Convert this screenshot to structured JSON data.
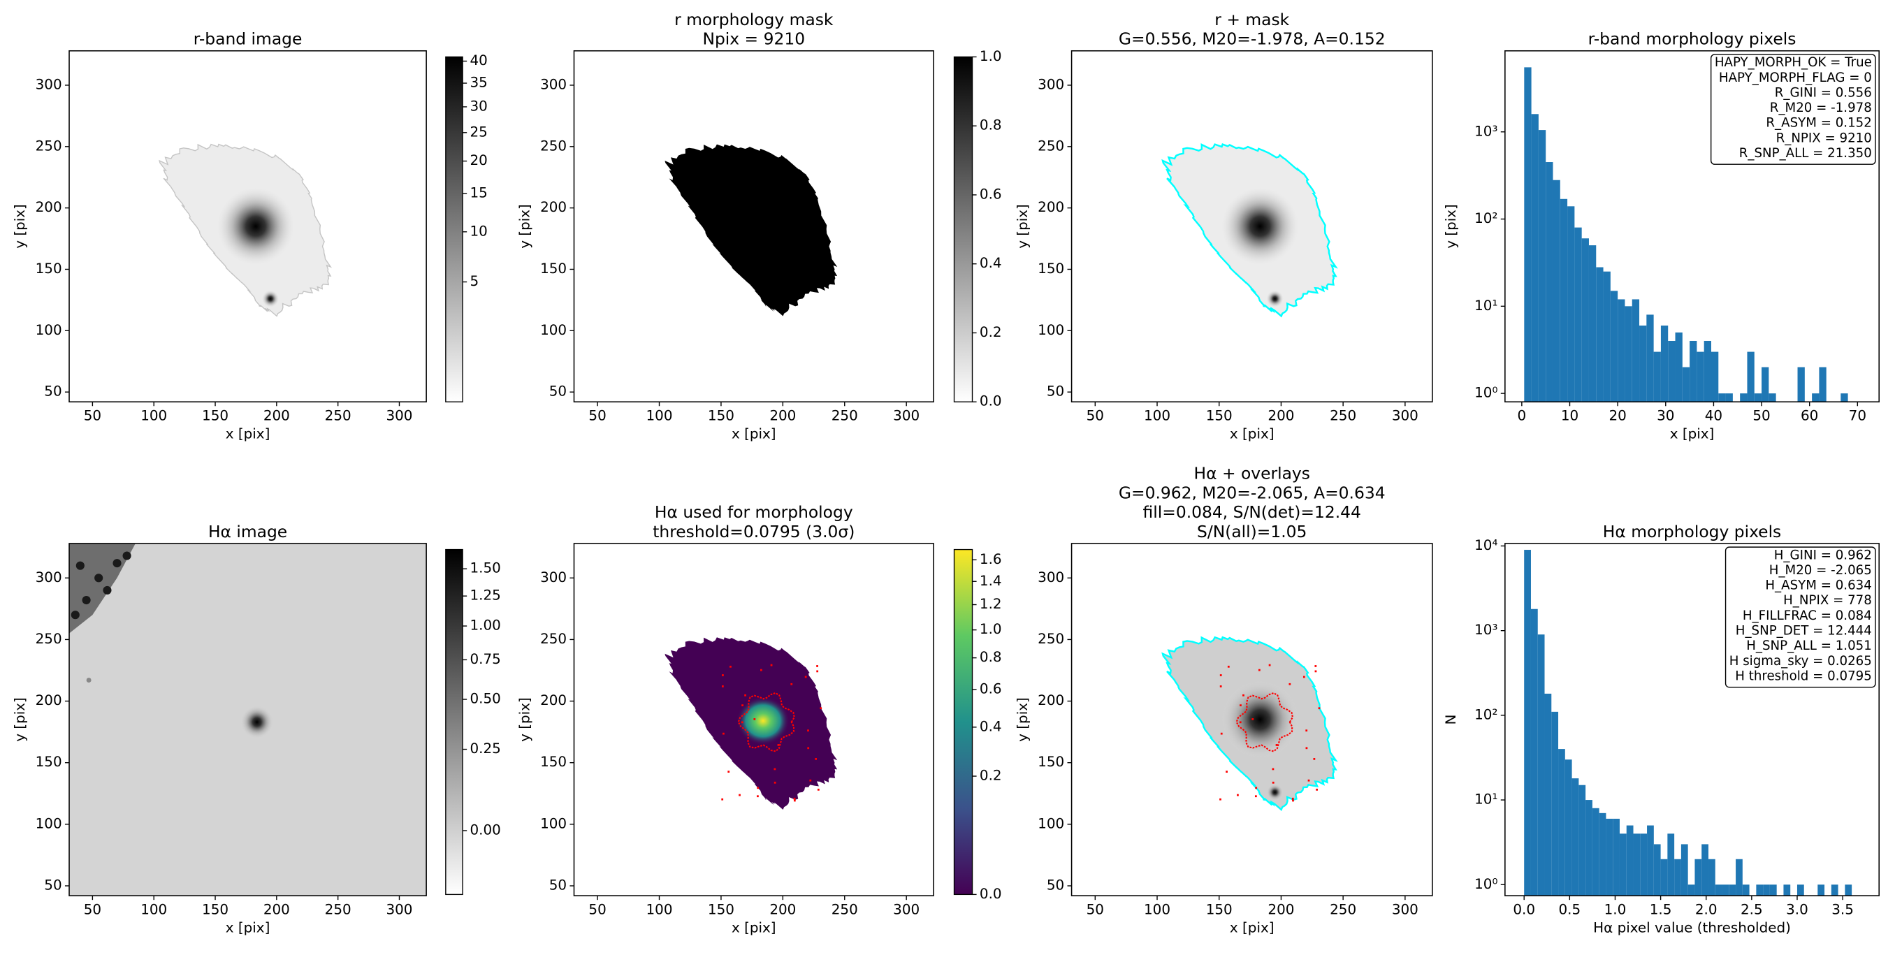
{
  "chart_data": [
    {
      "type": "image",
      "title": [
        "r-band image"
      ],
      "xlabel": "x [pix]",
      "ylabel": "y [pix]",
      "xlim": [
        31,
        322
      ],
      "ylim": [
        42,
        328
      ],
      "xticks": [
        50,
        100,
        150,
        200,
        250,
        300
      ],
      "yticks": [
        50,
        100,
        150,
        200,
        250,
        300
      ],
      "cmap": "gray_r",
      "colorbar": {
        "scale": "sqrt",
        "clim": [
          0.05,
          41
        ],
        "ticks": [
          5,
          10,
          15,
          20,
          25,
          30,
          35,
          40
        ]
      }
    },
    {
      "type": "image",
      "title": [
        "r morphology mask",
        "Npix = 9210"
      ],
      "xlabel": "x [pix]",
      "ylabel": "y [pix]",
      "xlim": [
        31,
        322
      ],
      "ylim": [
        42,
        328
      ],
      "xticks": [
        50,
        100,
        150,
        200,
        250,
        300
      ],
      "yticks": [
        50,
        100,
        150,
        200,
        250,
        300
      ],
      "cmap": "gray_r",
      "colorbar": {
        "scale": "linear",
        "clim": [
          0,
          1
        ],
        "ticks": [
          {
            "value": 0,
            "label": "0.0"
          },
          0.2,
          0.4,
          0.6,
          0.8,
          {
            "value": 1,
            "label": "1.0"
          }
        ]
      }
    },
    {
      "type": "image",
      "title": [
        "r + mask",
        "G=0.556, M20=-1.978, A=0.152"
      ],
      "xlabel": "x [pix]",
      "ylabel": "y [pix]",
      "xlim": [
        31,
        322
      ],
      "ylim": [
        42,
        328
      ],
      "xticks": [
        50,
        100,
        150,
        200,
        250,
        300
      ],
      "yticks": [
        50,
        100,
        150,
        200,
        250,
        300
      ],
      "cmap": "gray_r",
      "overlay_color": "#00ffff"
    },
    {
      "type": "histogram",
      "title": [
        "r-band morphology pixels"
      ],
      "xlabel": "x [pix]",
      "ylabel": "y [pix]",
      "color": "#1f77b4",
      "yscale": "log",
      "bins": [
        0.5,
        2,
        3.5,
        5,
        6.5,
        8,
        9.5,
        11,
        12.5,
        14,
        15.5,
        17,
        18.5,
        20,
        21.5,
        23,
        24.5,
        26,
        27.5,
        29,
        30.5,
        32,
        33.5,
        35,
        36.5,
        38,
        39.5,
        41,
        42.5,
        44,
        45.5,
        47,
        48.5,
        50,
        51.5,
        53,
        54.5,
        56,
        57.5,
        59,
        60.5,
        62,
        63.5,
        65,
        66.5,
        68
      ],
      "counts": [
        5500,
        1600,
        1050,
        450,
        280,
        170,
        140,
        80,
        60,
        50,
        28,
        25,
        15,
        12,
        10,
        12,
        6,
        8,
        3,
        6,
        4,
        5,
        2,
        4,
        3,
        4,
        3,
        1,
        1,
        0,
        1,
        3,
        1,
        2,
        1,
        0,
        0,
        0,
        2,
        0,
        1,
        2,
        0,
        0,
        1
      ],
      "xlim": [
        -3.5,
        74.5
      ],
      "ylim": [
        0.8,
        8500
      ],
      "xticks": [
        0,
        10,
        20,
        30,
        40,
        50,
        60,
        70
      ],
      "yticks": [
        {
          "value": 1,
          "label": "10⁰"
        },
        {
          "value": 10,
          "label": "10¹"
        },
        {
          "value": 100,
          "label": "10²"
        },
        {
          "value": 1000,
          "label": "10³"
        }
      ],
      "annotation": [
        "HAPY_MORPH_OK = True",
        "HAPY_MORPH_FLAG = 0",
        "R_GINI = 0.556",
        "R_M20 = -1.978",
        "R_ASYM = 0.152",
        "R_NPIX = 9210",
        "R_SNP_ALL = 21.350"
      ]
    },
    {
      "type": "image",
      "title": [
        "Hα image"
      ],
      "xlabel": "x [pix]",
      "ylabel": "y [pix]",
      "xlim": [
        31,
        322
      ],
      "ylim": [
        42,
        328
      ],
      "xticks": [
        50,
        100,
        150,
        200,
        250,
        300
      ],
      "yticks": [
        50,
        100,
        150,
        200,
        250,
        300
      ],
      "cmap": "gray_r",
      "colorbar": {
        "scale": "sqrt",
        "clim": [
          -0.06,
          1.69
        ],
        "ticks": [
          {
            "value": 0,
            "label": "0.00"
          },
          0.25,
          {
            "value": 0.5,
            "label": "0.50"
          },
          0.75,
          {
            "value": 1,
            "label": "1.00"
          },
          1.25,
          {
            "value": 1.5,
            "label": "1.50"
          }
        ]
      }
    },
    {
      "type": "image",
      "title": [
        "Hα used for morphology",
        "threshold=0.0795 (3.0σ)"
      ],
      "xlabel": "x [pix]",
      "ylabel": "y [pix]",
      "xlim": [
        31,
        322
      ],
      "ylim": [
        42,
        328
      ],
      "xticks": [
        50,
        100,
        150,
        200,
        250,
        300
      ],
      "yticks": [
        50,
        100,
        150,
        200,
        250,
        300
      ],
      "cmap": "viridis",
      "overlay_color": "#ff0000",
      "colorbar": {
        "scale": "sqrt",
        "clim": [
          0,
          1.7
        ],
        "ticks": [
          {
            "value": 0,
            "label": "0.0"
          },
          0.2,
          0.4,
          0.6,
          0.8,
          {
            "value": 1,
            "label": "1.0"
          },
          1.2,
          1.4,
          1.6
        ]
      }
    },
    {
      "type": "image",
      "title": [
        "Hα + overlays",
        "G=0.962, M20=-2.065, A=0.634",
        "fill=0.084, S/N(det)=12.44",
        "S/N(all)=1.05"
      ],
      "xlabel": "x [pix]",
      "ylabel": "y [pix]",
      "xlim": [
        31,
        322
      ],
      "ylim": [
        42,
        328
      ],
      "xticks": [
        50,
        100,
        150,
        200,
        250,
        300
      ],
      "yticks": [
        50,
        100,
        150,
        200,
        250,
        300
      ],
      "cmap": "gray_r",
      "overlay_color": "#00ffff"
    },
    {
      "type": "histogram",
      "title": [
        "Hα morphology pixels"
      ],
      "xlabel": "Hα pixel value (thresholded)",
      "ylabel": "N",
      "color": "#1f77b4",
      "yscale": "log",
      "bins": [
        0,
        0.075,
        0.15,
        0.225,
        0.3,
        0.375,
        0.45,
        0.525,
        0.6,
        0.675,
        0.75,
        0.825,
        0.9,
        0.975,
        1.05,
        1.125,
        1.2,
        1.275,
        1.35,
        1.425,
        1.5,
        1.575,
        1.65,
        1.725,
        1.8,
        1.875,
        1.95,
        2.025,
        2.1,
        2.175,
        2.25,
        2.325,
        2.4,
        2.475,
        2.55,
        2.625,
        2.7,
        2.775,
        2.85,
        2.925,
        3,
        3.075,
        3.15,
        3.225,
        3.3,
        3.375,
        3.45,
        3.525,
        3.6
      ],
      "counts": [
        9000,
        1800,
        900,
        180,
        110,
        40,
        30,
        18,
        15,
        10,
        8,
        7,
        6,
        6,
        4,
        5,
        4,
        4,
        5,
        3,
        2,
        4,
        2,
        3,
        1,
        2,
        3,
        2,
        1,
        1,
        1,
        2,
        1,
        0,
        1,
        1,
        1,
        0,
        1,
        0,
        1,
        0,
        0,
        1,
        0,
        1,
        0,
        1
      ],
      "xlim": [
        -0.21,
        3.9
      ],
      "ylim": [
        0.74,
        10700
      ],
      "xticks": [
        {
          "value": 0,
          "label": "0.0"
        },
        0.5,
        {
          "value": 1,
          "label": "1.0"
        },
        1.5,
        {
          "value": 2,
          "label": "2.0"
        },
        2.5,
        {
          "value": 3,
          "label": "3.0"
        },
        3.5
      ],
      "yticks": [
        {
          "value": 1,
          "label": "10⁰"
        },
        {
          "value": 10,
          "label": "10¹"
        },
        {
          "value": 100,
          "label": "10²"
        },
        {
          "value": 1000,
          "label": "10³"
        },
        {
          "value": 10000,
          "label": "10⁴"
        }
      ],
      "annotation": [
        "H_GINI = 0.962",
        "H_M20 = -2.065",
        "H_ASYM = 0.634",
        "H_NPIX = 778",
        "H_FILLFRAC = 0.084",
        "H_SNP_DET = 12.444",
        "H_SNP_ALL = 1.051",
        "H sigma_sky = 0.0265",
        "H threshold = 0.0795"
      ]
    }
  ]
}
